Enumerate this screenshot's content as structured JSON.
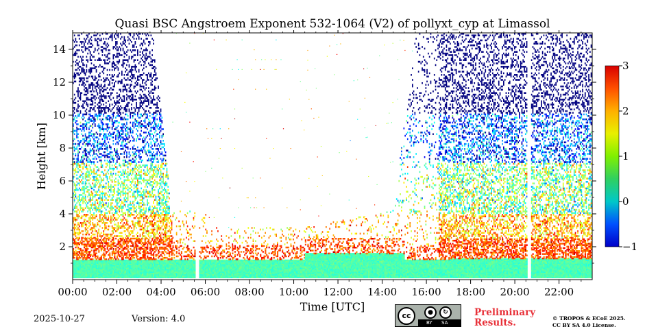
{
  "chart_data": {
    "type": "heatmap",
    "title": "Quasi BSC Angstroem Exponent 532-1064 (V2) of pollyxt_cyp at Limassol",
    "xlabel": "Time [UTC]",
    "ylabel": "Height [km]",
    "x_ticks": [
      "00:00",
      "02:00",
      "04:00",
      "06:00",
      "08:00",
      "10:00",
      "12:00",
      "14:00",
      "16:00",
      "18:00",
      "20:00",
      "22:00"
    ],
    "x_range_hours": [
      0,
      23.5
    ],
    "y_ticks": [
      2,
      4,
      6,
      8,
      10,
      12,
      14
    ],
    "ylim": [
      0,
      15
    ],
    "colorbar": {
      "range": [
        -1,
        3
      ],
      "ticks": [
        -1,
        0,
        1,
        2,
        3
      ],
      "tick_labels": [
        "−1",
        "0",
        "1",
        "2",
        "3"
      ],
      "colormap": "jet"
    },
    "data_gaps_hours": [
      5.6,
      20.6
    ],
    "layers": [
      {
        "type": "boundary layer",
        "height_km": [
          0.1,
          1.2
        ],
        "angstroem_exponent": 0.8
      },
      {
        "type": "aerosol top",
        "height_km": [
          1.2,
          2.5
        ],
        "angstroem_exponent": 2.2
      }
    ]
  },
  "footer": {
    "date": "2025-10-27",
    "version": "Version: 4.0",
    "preliminary_line1": "Preliminary",
    "preliminary_line2": "Results.",
    "copyright_line1": "© TROPOS & ECoE 2025.",
    "copyright_line2": "CC BY SA 4.0 License.",
    "license_badge": {
      "cc": "cc",
      "by": "BY",
      "sa": "SA"
    }
  }
}
